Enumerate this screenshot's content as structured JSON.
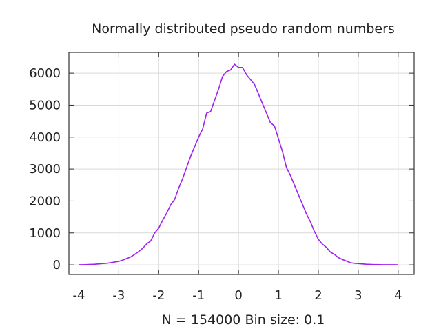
{
  "chart_data": {
    "type": "line",
    "title": "Normally distributed pseudo random numbers",
    "xlabel": "N = 154000  Bin size: 0.1",
    "ylabel": "",
    "xlim": [
      -4.25,
      4.4
    ],
    "ylim": [
      -300,
      6650
    ],
    "x_ticks": [
      -4,
      -3,
      -2,
      -1,
      0,
      1,
      2,
      3,
      4
    ],
    "x_tick_labels": [
      "-4",
      "-3",
      "-2",
      "-1",
      "0",
      "1",
      "2",
      "3",
      "4"
    ],
    "y_ticks": [
      0,
      1000,
      2000,
      3000,
      4000,
      5000,
      6000
    ],
    "y_tick_labels": [
      "0",
      "1000",
      "2000",
      "3000",
      "4000",
      "5000",
      "6000"
    ],
    "grid": true,
    "legend": "none",
    "series": [
      {
        "color": "#a020f0",
        "x": [
          -4.0,
          -3.9,
          -3.8,
          -3.7,
          -3.6,
          -3.5,
          -3.4,
          -3.3,
          -3.2,
          -3.1,
          -3.0,
          -2.9,
          -2.8,
          -2.7,
          -2.6,
          -2.5,
          -2.4,
          -2.3,
          -2.2,
          -2.1,
          -2.0,
          -1.9,
          -1.8,
          -1.7,
          -1.6,
          -1.5,
          -1.4,
          -1.3,
          -1.2,
          -1.1,
          -1.0,
          -0.9,
          -0.8,
          -0.7,
          -0.6,
          -0.5,
          -0.4,
          -0.3,
          -0.2,
          -0.1,
          0.0,
          0.1,
          0.2,
          0.3,
          0.4,
          0.5,
          0.6,
          0.7,
          0.8,
          0.9,
          1.0,
          1.1,
          1.2,
          1.3,
          1.4,
          1.5,
          1.6,
          1.7,
          1.8,
          1.9,
          2.0,
          2.1,
          2.2,
          2.3,
          2.4,
          2.5,
          2.6,
          2.7,
          2.8,
          2.9,
          3.0,
          3.1,
          3.2,
          3.3,
          3.4,
          3.5,
          3.6,
          3.7,
          3.8,
          3.9,
          4.0
        ],
        "y": [
          5,
          5,
          10,
          15,
          20,
          30,
          40,
          50,
          70,
          90,
          110,
          150,
          200,
          250,
          330,
          420,
          520,
          660,
          750,
          1000,
          1150,
          1400,
          1620,
          1880,
          2050,
          2400,
          2700,
          3050,
          3400,
          3700,
          4000,
          4250,
          4750,
          4800,
          5150,
          5500,
          5900,
          6050,
          6100,
          6280,
          6180,
          6180,
          5950,
          5800,
          5650,
          5350,
          5050,
          4750,
          4450,
          4350,
          3950,
          3550,
          3050,
          2800,
          2500,
          2200,
          1900,
          1600,
          1350,
          1050,
          800,
          650,
          550,
          400,
          330,
          230,
          170,
          120,
          70,
          50,
          40,
          30,
          20,
          15,
          10,
          8,
          5,
          5,
          3,
          3,
          2
        ]
      }
    ]
  }
}
